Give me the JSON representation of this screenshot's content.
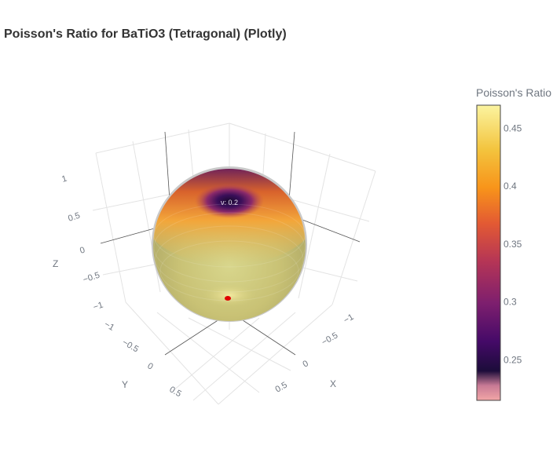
{
  "title": "Poisson's Ratio for BaTiO3 (Tetragonal) (Plotly)",
  "chart_data": {
    "type": "surface3d",
    "title": "Poisson's Ratio for BaTiO3 (Tetragonal) (Plotly)",
    "colorbar": {
      "title": "Poisson's Ratio",
      "colorscale": "inferno-like (pink-dark-purple-orange-yellow)",
      "range": [
        0.215,
        0.47
      ],
      "ticks": [
        0.25,
        0.3,
        0.35,
        0.4,
        0.45
      ],
      "tick_labels": [
        "0.25",
        "0.3",
        "0.35",
        "0.4",
        "0.45"
      ]
    },
    "axes": {
      "x": {
        "label": "X",
        "tick_values": [
          -1,
          -0.5,
          0,
          0.5
        ],
        "tick_labels": [
          "−1",
          "−0.5",
          "0",
          "0.5"
        ]
      },
      "y": {
        "label": "Y",
        "tick_values": [
          -1,
          -0.5,
          0,
          0.5
        ],
        "tick_labels": [
          "−1",
          "−0.5",
          "0",
          "0.5"
        ]
      },
      "z": {
        "label": "Z",
        "tick_values": [
          -1,
          -0.5,
          0,
          0.5,
          1
        ],
        "tick_labels": [
          "−1",
          "−0.5",
          "0",
          "0.5",
          "1"
        ]
      }
    },
    "surface": {
      "shape": "sphere",
      "description_values": {
        "pole_top_value": 0.25,
        "equator_value": 0.45,
        "bottom_pole_marker_color": "#e00000"
      }
    },
    "hover_label": "ν: 0.2"
  }
}
